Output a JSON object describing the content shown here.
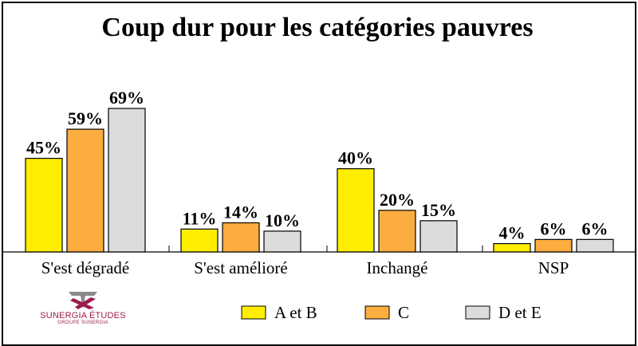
{
  "chart_data": {
    "type": "bar",
    "title": "Coup dur pour les catégories pauvres",
    "categories": [
      "S'est dégradé",
      "S'est amélioré",
      "Inchangé",
      "NSP"
    ],
    "series": [
      {
        "name": "A et B",
        "color": "#ffee00",
        "values": [
          45,
          11,
          40,
          4
        ]
      },
      {
        "name": "C",
        "color": "#fbad3f",
        "values": [
          59,
          14,
          20,
          6
        ]
      },
      {
        "name": "D et E",
        "color": "#dcdcdc",
        "values": [
          69,
          10,
          15,
          6
        ]
      }
    ],
    "value_suffix": "%",
    "ylim": [
      0,
      80
    ],
    "grid": false,
    "legend_position": "bottom"
  },
  "logo": {
    "name": "SUNERGIA ÉTUDES",
    "subtitle": "GROUPE SUNERGIA",
    "color": "#9b1b4f",
    "accent": "#8a8a8a"
  }
}
